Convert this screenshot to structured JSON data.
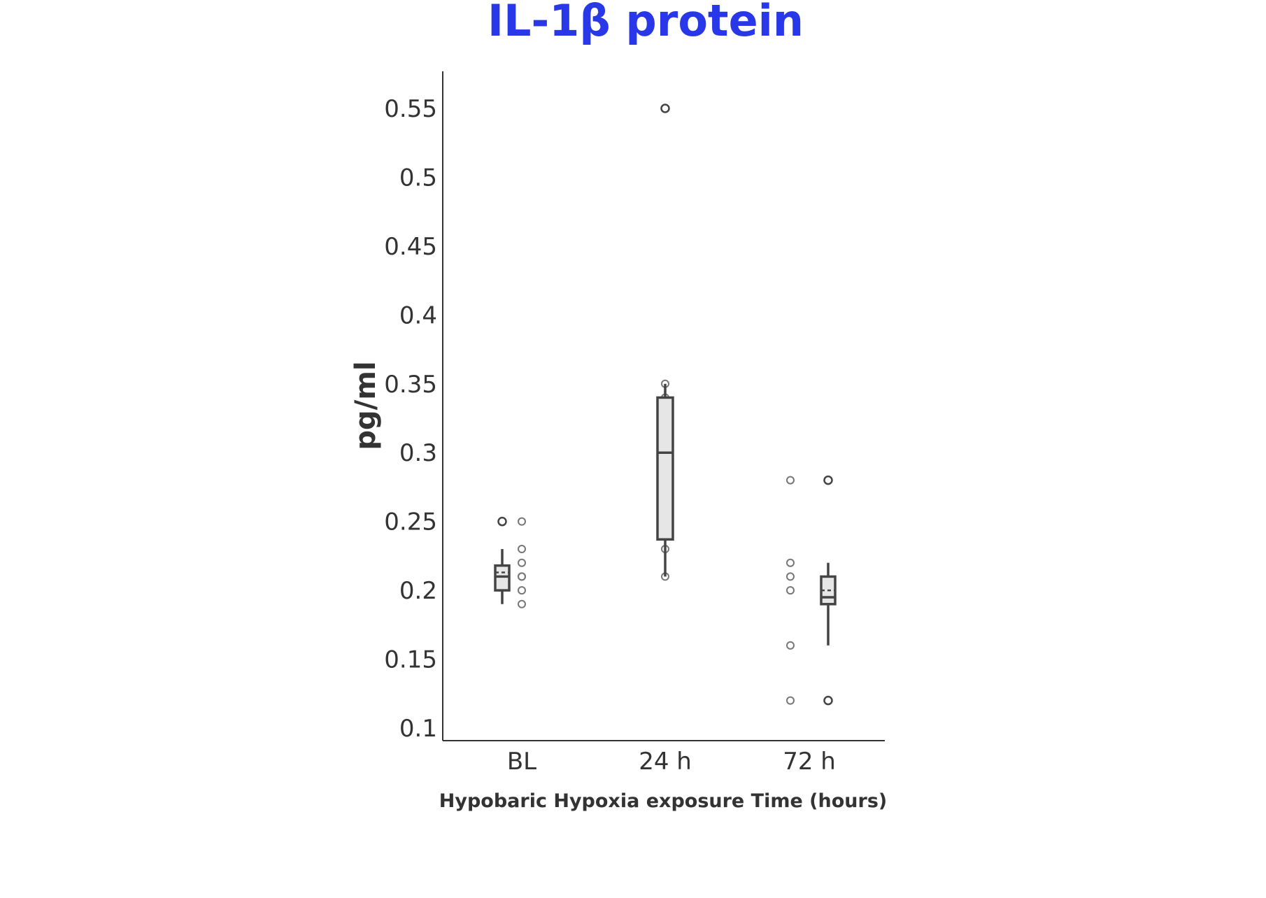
{
  "chart_data": {
    "type": "box",
    "title": "IL-1β protein",
    "xlabel": "Hypobaric Hypoxia exposure Time (hours)",
    "ylabel": "pg/ml",
    "categories": [
      "BL",
      "24 h",
      "72 h"
    ],
    "yticks": [
      0.1,
      0.15,
      0.2,
      0.25,
      0.3,
      0.35,
      0.4,
      0.45,
      0.5,
      0.55
    ],
    "ytick_labels": [
      "0.1",
      "0.15",
      "0.2",
      "0.25",
      "0.3",
      "0.35",
      "0.4",
      "0.45",
      "0.5",
      "0.55"
    ],
    "ylim": [
      0.09,
      0.575
    ],
    "grid": false,
    "boxes": [
      {
        "category": "BL",
        "q1": 0.2,
        "median": 0.21,
        "q3": 0.218,
        "mean": 0.213,
        "whisker_low": 0.19,
        "whisker_high": 0.23,
        "outliers": [
          0.25
        ],
        "points": [
          0.25,
          0.23,
          0.22,
          0.21,
          0.21,
          0.2,
          0.19
        ]
      },
      {
        "category": "24 h",
        "q1": 0.237,
        "median": 0.3,
        "q3": 0.34,
        "mean": 0.3,
        "whisker_low": 0.21,
        "whisker_high": 0.35,
        "outliers": [
          0.55
        ],
        "points": [
          0.35,
          0.34,
          0.33,
          0.3,
          0.25,
          0.24,
          0.23,
          0.21
        ]
      },
      {
        "category": "72 h",
        "q1": 0.19,
        "median": 0.195,
        "q3": 0.21,
        "mean": 0.2,
        "whisker_low": 0.16,
        "whisker_high": 0.22,
        "outliers": [
          0.28,
          0.12
        ],
        "points": [
          0.28,
          0.22,
          0.21,
          0.2,
          0.16,
          0.12
        ]
      }
    ],
    "colors": {
      "title": "#2838e8",
      "box_fill": "#e6e6e6",
      "box_line": "#444444",
      "point": "#777777",
      "axis": "#333333"
    }
  }
}
